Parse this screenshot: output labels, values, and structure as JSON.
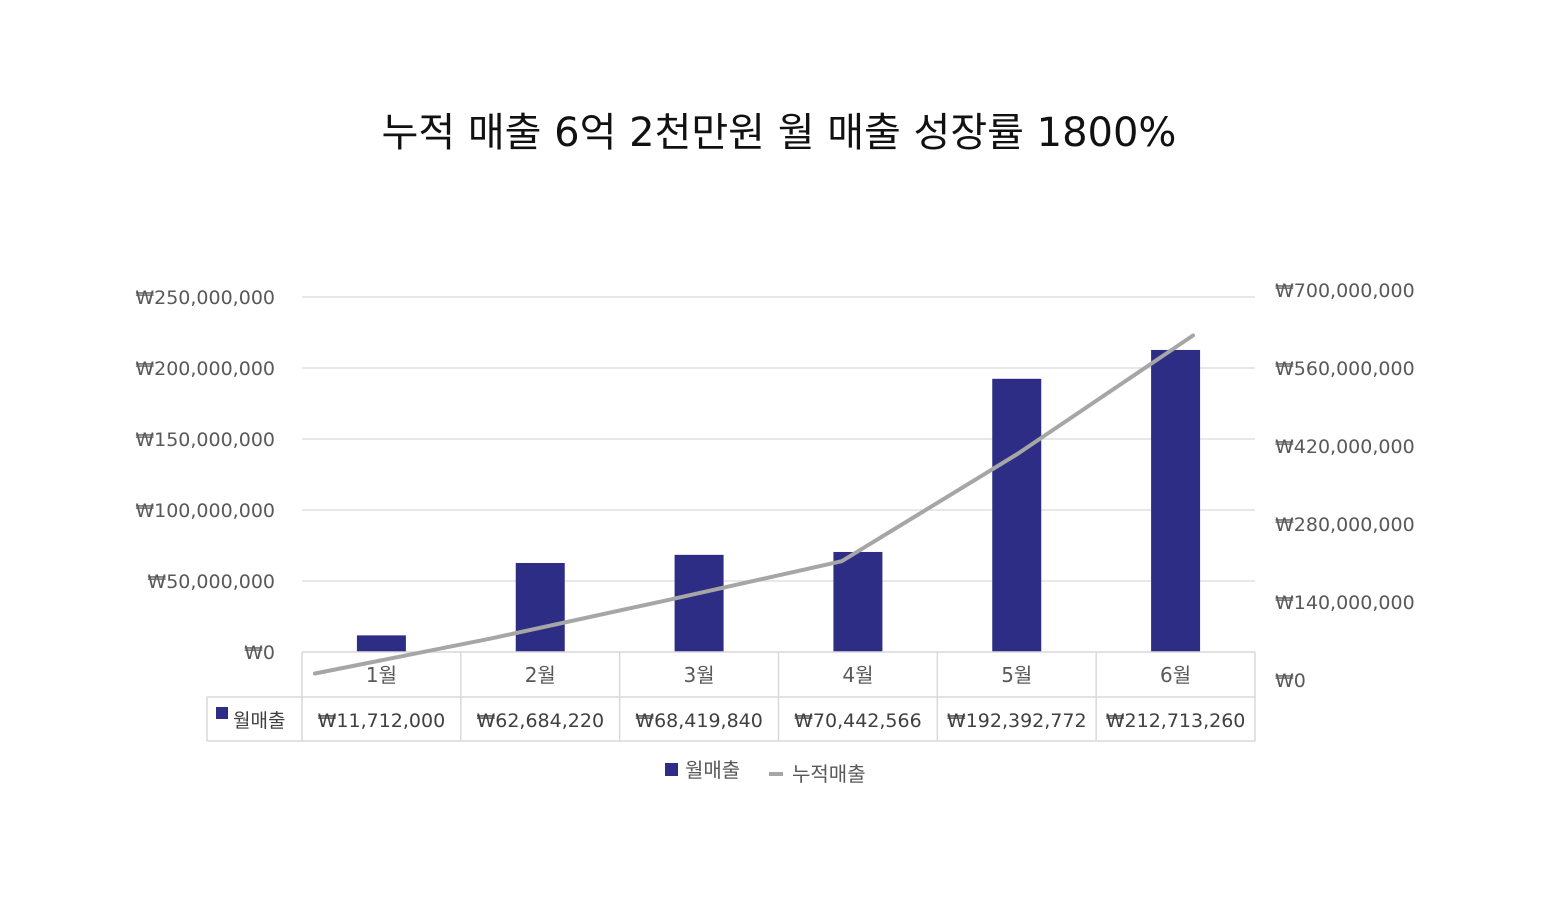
{
  "chart_data": {
    "type": "bar",
    "title": "누적 매출 6억 2천만원 월 매출 성장률 1800%",
    "categories": [
      "1월",
      "2월",
      "3월",
      "4월",
      "5월",
      "6월"
    ],
    "series": [
      {
        "name": "월매출",
        "type": "bar",
        "axis": "left",
        "color": "#2e2d85",
        "values": [
          11712000,
          62684220,
          68419840,
          70442566,
          192392772,
          212713260
        ],
        "value_labels": [
          "₩11,712,000",
          "₩62,684,220",
          "₩68,419,840",
          "₩70,442,566",
          "₩192,392,772",
          "₩212,713,260"
        ]
      },
      {
        "name": "누적매출",
        "type": "line",
        "axis": "right",
        "color": "#a6a6a6",
        "values": [
          11712000,
          74396220,
          142816060,
          213258626,
          405651398,
          618364658
        ]
      }
    ],
    "y_left": {
      "min": 0,
      "max": 250000000,
      "ticks": [
        0,
        50000000,
        100000000,
        150000000,
        200000000,
        250000000
      ],
      "tick_labels": [
        "₩0",
        "₩50,000,000",
        "₩100,000,000",
        "₩150,000,000",
        "₩200,000,000",
        "₩250,000,000"
      ]
    },
    "y_right": {
      "min": 0,
      "max": 700000000,
      "ticks": [
        0,
        140000000,
        280000000,
        420000000,
        560000000,
        700000000
      ],
      "tick_labels": [
        "₩0",
        "₩140,000,000",
        "₩280,000,000",
        "₩420,000,000",
        "₩560,000,000",
        "₩700,000,000"
      ]
    },
    "data_table": {
      "row_label": "월매출"
    },
    "legend": {
      "position": "bottom",
      "items": [
        "월매출",
        "누적매출"
      ]
    },
    "grid": true,
    "colors": {
      "gridline": "#d9d9d9",
      "table_border": "#d9d9d9"
    }
  }
}
